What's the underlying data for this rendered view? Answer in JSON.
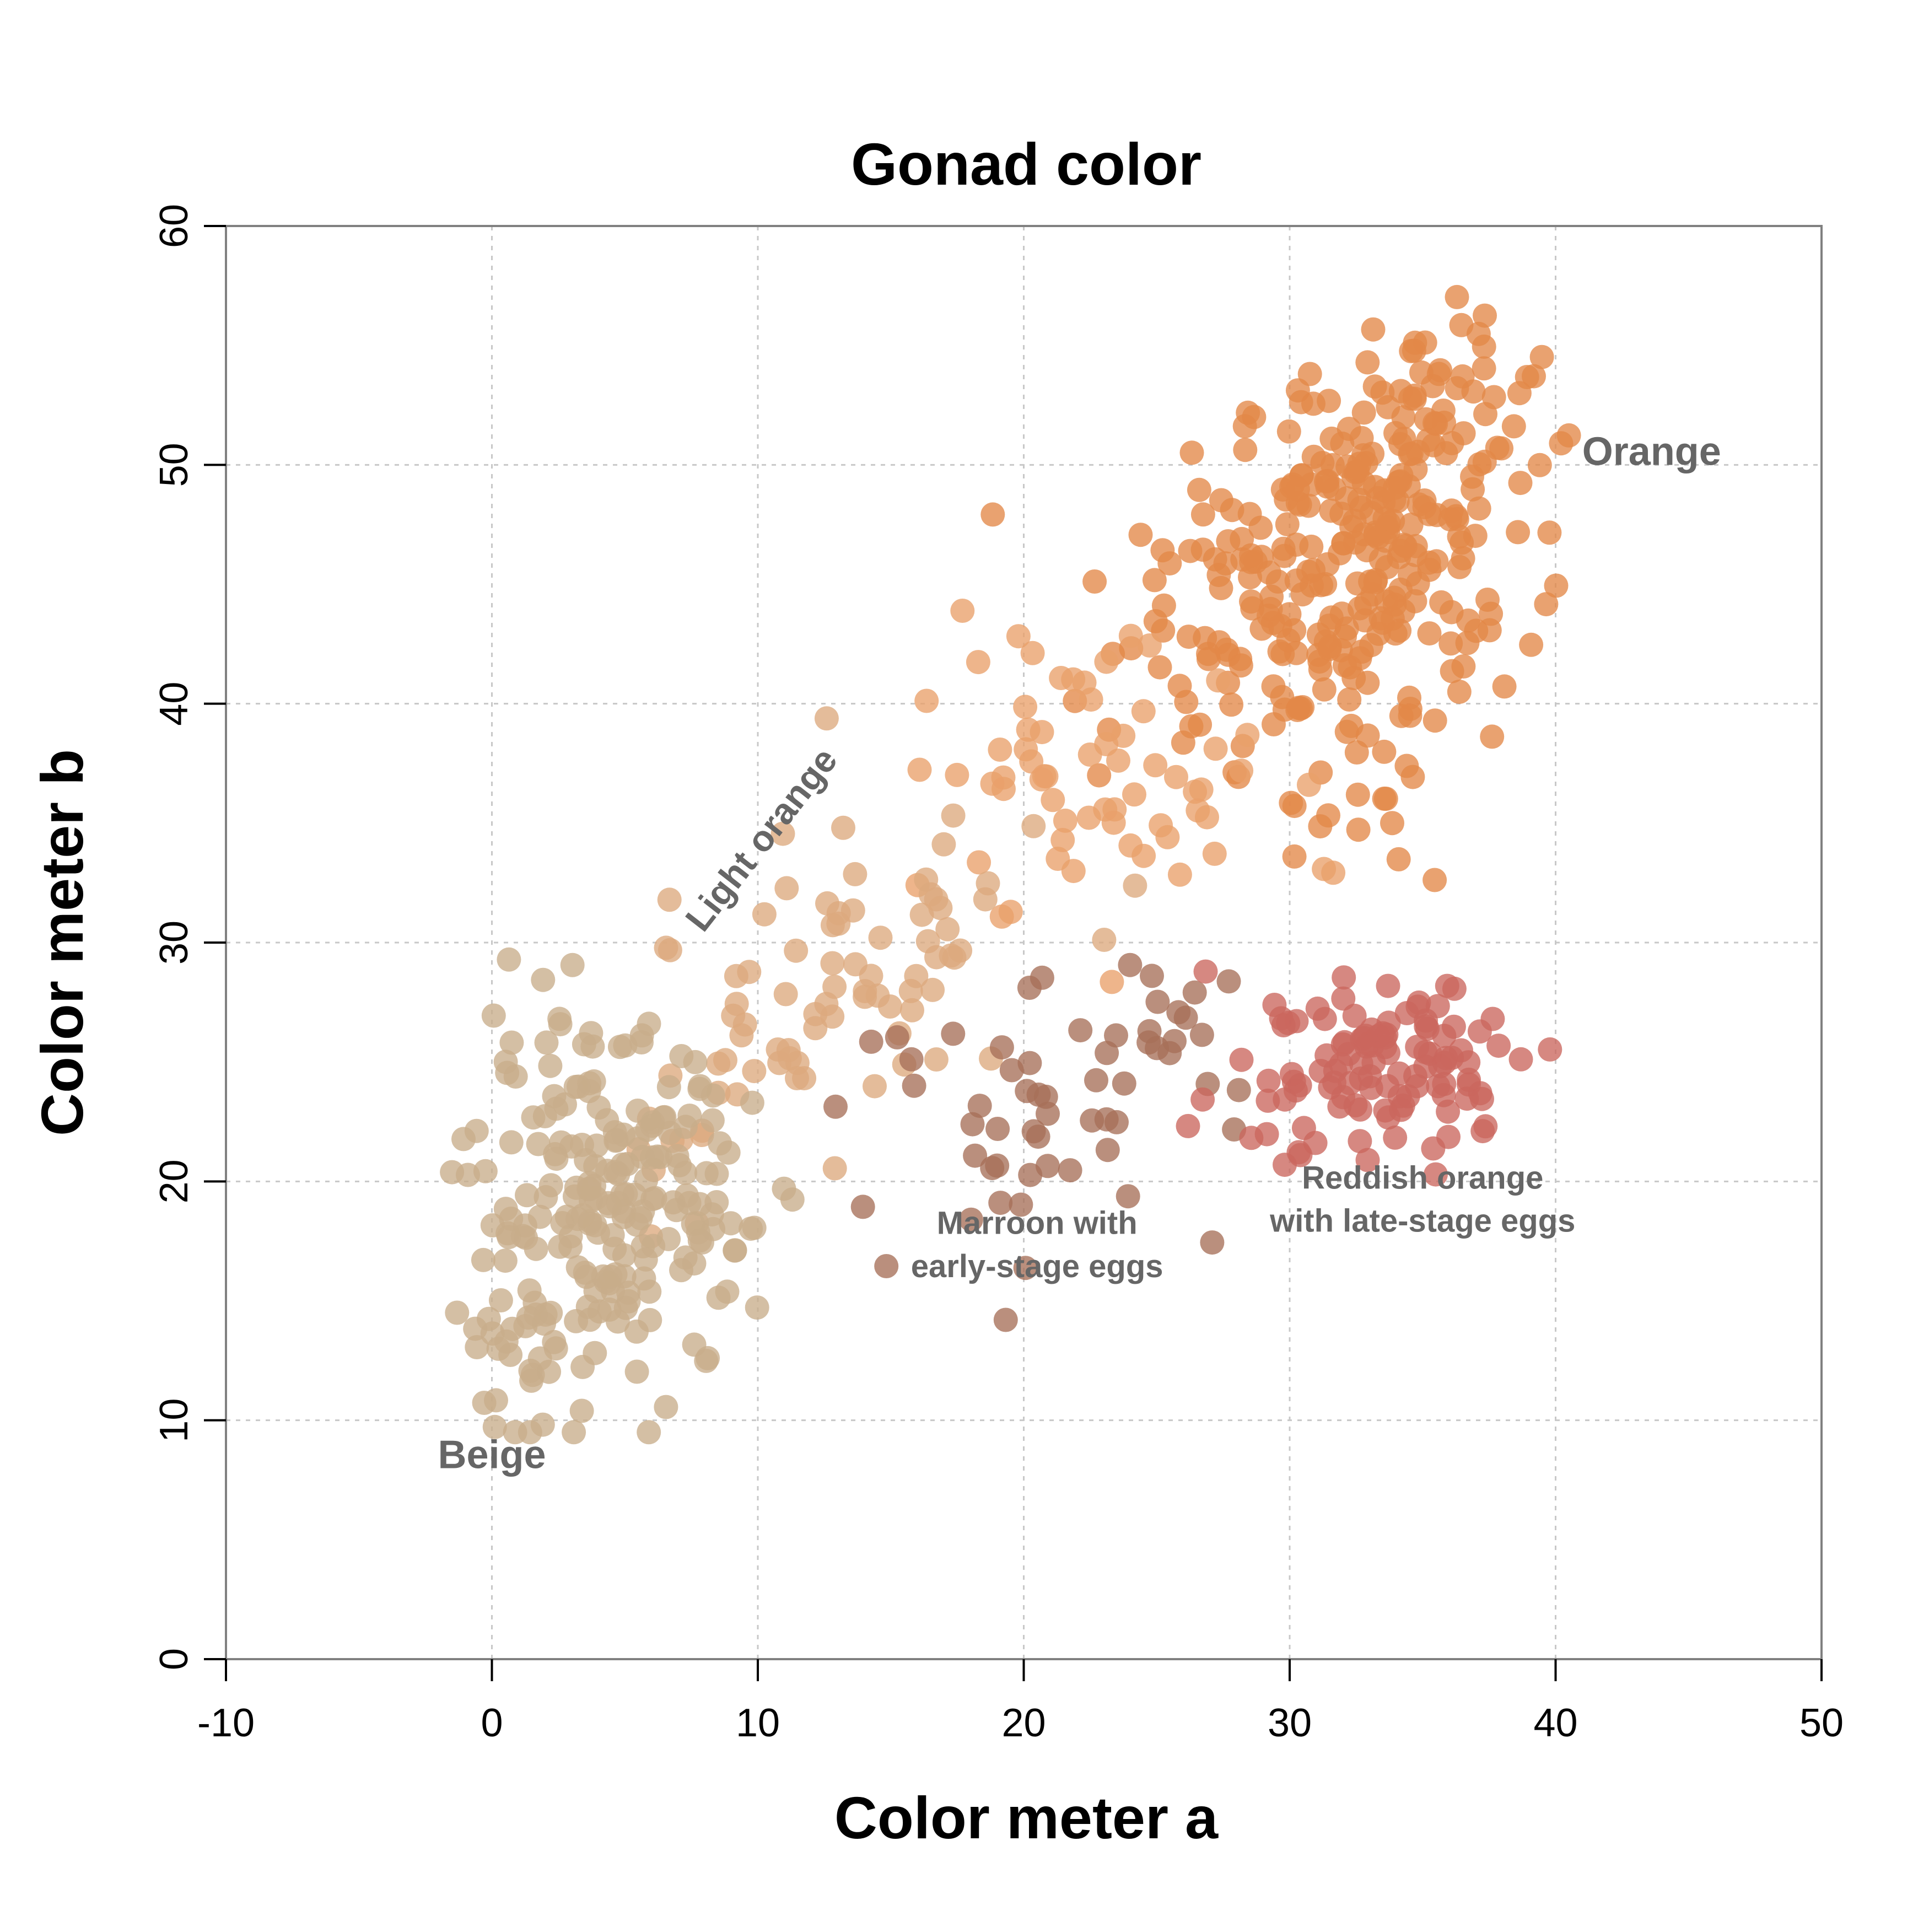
{
  "chart_data": {
    "type": "scatter",
    "title": "Gonad color",
    "xlabel": "Color meter a",
    "ylabel": "Color meter b",
    "xlim": [
      -10,
      50
    ],
    "ylim": [
      0,
      60
    ],
    "x_ticks": [
      -10,
      0,
      10,
      20,
      30,
      40,
      50
    ],
    "y_ticks": [
      0,
      10,
      20,
      30,
      40,
      50,
      60
    ],
    "grid": true,
    "annotations": [
      {
        "id": "orange",
        "lines": [
          "Orange"
        ],
        "x": 41,
        "y": 50
      },
      {
        "id": "light-orange",
        "lines": [
          "Light orange"
        ],
        "x": 10.5,
        "y": 34
      },
      {
        "id": "beige",
        "lines": [
          "Beige"
        ],
        "x": 0,
        "y": 8
      },
      {
        "id": "marroon",
        "lines": [
          "Marroon with",
          "early-stage eggs"
        ],
        "x": 20.5,
        "y": 17.8
      },
      {
        "id": "reddish",
        "lines": [
          "Reddish orange",
          "with late-stage eggs"
        ],
        "x": 35,
        "y": 19.7
      }
    ],
    "series": [
      {
        "color": "#E38848",
        "clusters": [
          {
            "cx": 33.5,
            "cy": 47.5,
            "sx": 2.8,
            "sy": 3.2,
            "n": 160
          },
          {
            "cx": 31,
            "cy": 44,
            "sx": 3,
            "sy": 3.5,
            "n": 70
          },
          {
            "cx": 35.5,
            "cy": 52,
            "sx": 2,
            "sy": 2.5,
            "n": 45
          },
          {
            "cx": 27,
            "cy": 43,
            "sx": 3,
            "sy": 3,
            "n": 40
          },
          {
            "cx": 32,
            "cy": 38,
            "sx": 2.5,
            "sy": 3,
            "n": 30
          }
        ]
      },
      {
        "color": "#E9A06A",
        "clusters": [
          {
            "cx": 23.5,
            "cy": 37,
            "sx": 3,
            "sy": 3.5,
            "n": 50
          },
          {
            "cx": 19,
            "cy": 39,
            "sx": 2.5,
            "sy": 3,
            "n": 15
          }
        ]
      },
      {
        "color": "#DDA97E",
        "clusters": [
          {
            "cx": 14,
            "cy": 29,
            "sx": 3.5,
            "sy": 3.5,
            "n": 55
          },
          {
            "cx": 9,
            "cy": 25,
            "sx": 2.5,
            "sy": 3,
            "n": 30
          }
        ]
      },
      {
        "color": "#C8AD8A",
        "clusters": [
          {
            "cx": 4.5,
            "cy": 19,
            "sx": 2.6,
            "sy": 3.6,
            "n": 200
          },
          {
            "cx": 1.5,
            "cy": 13,
            "sx": 1.5,
            "sy": 2,
            "n": 30
          }
        ]
      },
      {
        "color": "#A67058",
        "clusters": [
          {
            "cx": 20.5,
            "cy": 22.5,
            "sx": 3.5,
            "sy": 2.5,
            "n": 45
          },
          {
            "cx": 25.5,
            "cy": 27,
            "sx": 2,
            "sy": 2,
            "n": 15
          }
        ]
      },
      {
        "color": "#CB665E",
        "clusters": [
          {
            "cx": 34.5,
            "cy": 25,
            "sx": 2.5,
            "sy": 1.8,
            "n": 90
          },
          {
            "cx": 30,
            "cy": 24.5,
            "sx": 1.5,
            "sy": 2,
            "n": 25
          }
        ]
      }
    ]
  }
}
